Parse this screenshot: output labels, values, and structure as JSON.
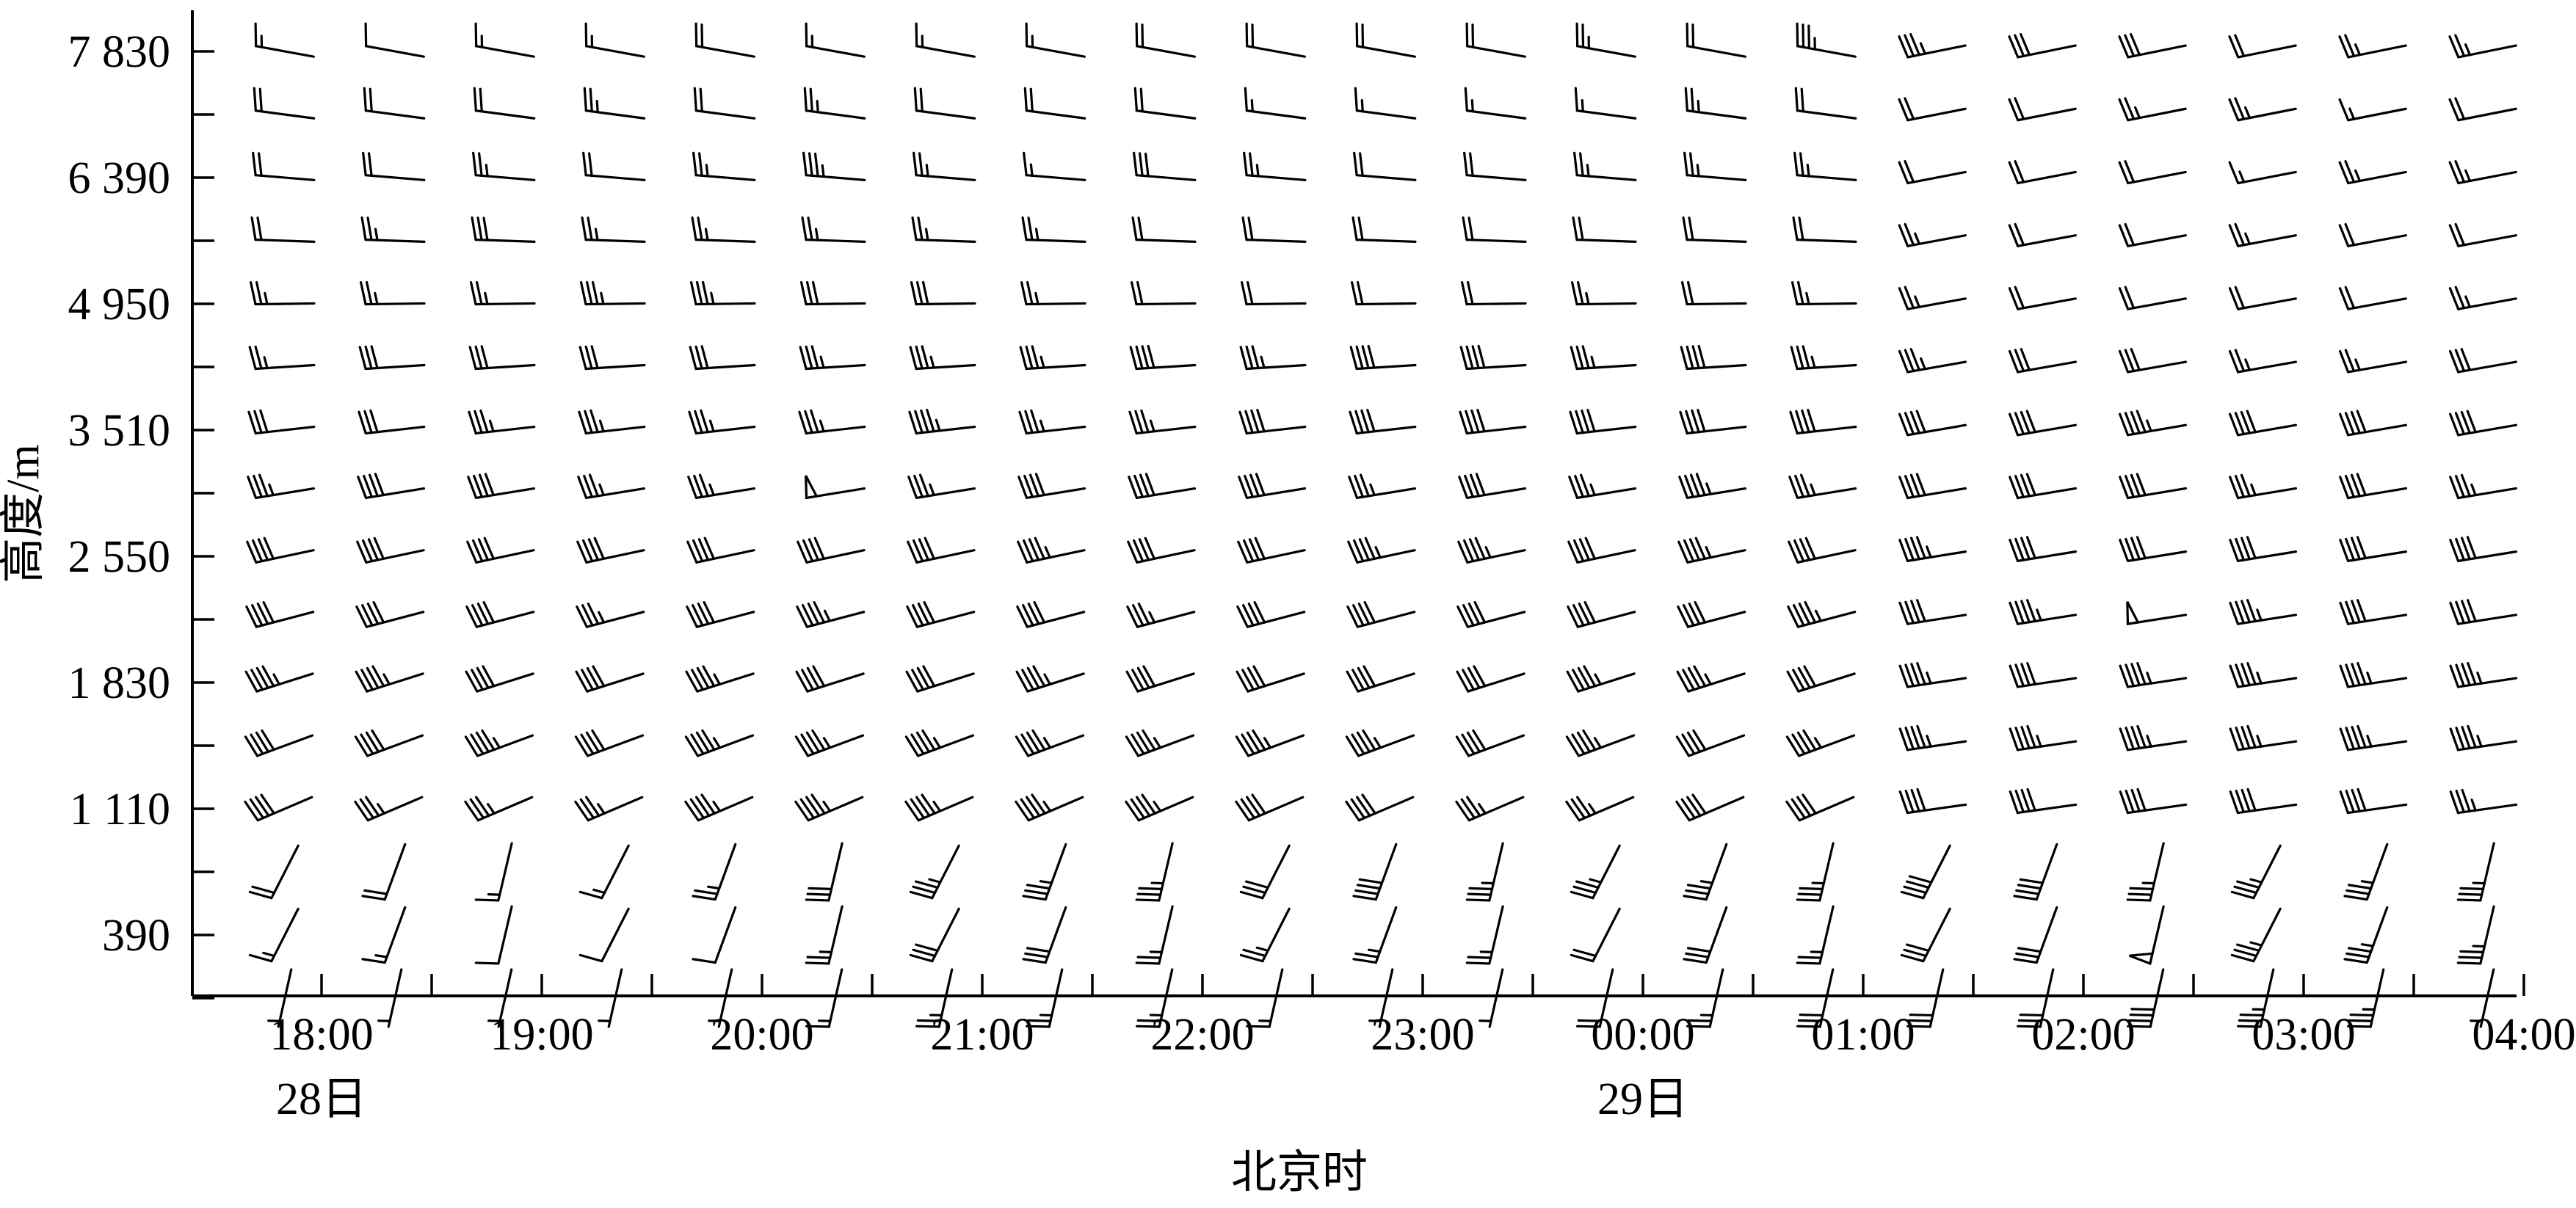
{
  "chart_data": {
    "type": "wind_barb",
    "xlabel": "北京时",
    "ylabel": "高度/m",
    "x_ticks": [
      "18:00",
      "19:00",
      "20:00",
      "21:00",
      "22:00",
      "23:00",
      "00:00",
      "01:00",
      "02:00",
      "03:00",
      "04:00"
    ],
    "date_labels": [
      {
        "text": "28日",
        "under_tick": "18:00"
      },
      {
        "text": "29日",
        "under_tick": "00:00"
      }
    ],
    "y_ticks": [
      "7 830",
      "6 390",
      "4 950",
      "3 510",
      "2 550",
      "1 830",
      "1 110",
      "390"
    ],
    "x_time_range": [
      "17:35",
      "04:00"
    ],
    "barb_times": [
      "17:50",
      "18:20",
      "18:50",
      "19:20",
      "19:50",
      "20:20",
      "20:50",
      "21:20",
      "21:50",
      "22:20",
      "22:50",
      "23:20",
      "23:50",
      "00:20",
      "00:50",
      "01:20",
      "01:50",
      "02:20",
      "02:50",
      "03:20",
      "03:50"
    ],
    "levels_note": "16 rows of barbs; labeled levels listed in y_ticks",
    "wind_speed_note": "speeds in m/s; barbs drawn with standard convention (short=2, full=4, flag=20)",
    "series": [
      {
        "name": "",
        "rows": [
          {
            "level_index": 0,
            "speeds": [
              6,
              5,
              6,
              6,
              8,
              6,
              6,
              6,
              8,
              8,
              8,
              8,
              10,
              8,
              14,
              14,
              12,
              12,
              8,
              10,
              10
            ]
          },
          {
            "level_index": 1,
            "speeds": [
              8,
              8,
              8,
              10,
              8,
              10,
              8,
              8,
              8,
              6,
              6,
              6,
              6,
              10,
              8,
              8,
              8,
              10,
              10,
              6,
              8
            ]
          },
          {
            "level_index": 2,
            "speeds": [
              8,
              8,
              10,
              8,
              10,
              14,
              10,
              6,
              12,
              10,
              8,
              8,
              10,
              10,
              10,
              8,
              8,
              8,
              6,
              10,
              10
            ]
          },
          {
            "level_index": 3,
            "speeds": [
              8,
              10,
              12,
              10,
              10,
              10,
              10,
              10,
              8,
              8,
              8,
              8,
              8,
              8,
              8,
              10,
              8,
              8,
              10,
              8,
              8
            ]
          },
          {
            "level_index": 4,
            "speeds": [
              10,
              10,
              10,
              14,
              14,
              12,
              12,
              10,
              8,
              8,
              8,
              8,
              10,
              8,
              10,
              10,
              8,
              8,
              8,
              8,
              10
            ]
          },
          {
            "level_index": 5,
            "speeds": [
              10,
              12,
              12,
              12,
              12,
              14,
              14,
              14,
              16,
              14,
              16,
              16,
              14,
              16,
              14,
              14,
              12,
              12,
              10,
              10,
              12
            ]
          },
          {
            "level_index": 6,
            "speeds": [
              12,
              12,
              14,
              14,
              14,
              14,
              18,
              14,
              14,
              16,
              16,
              16,
              16,
              16,
              16,
              16,
              16,
              18,
              16,
              16,
              16
            ]
          },
          {
            "level_index": 7,
            "speeds": [
              14,
              16,
              16,
              14,
              14,
              20,
              14,
              16,
              16,
              16,
              14,
              16,
              14,
              18,
              14,
              16,
              16,
              16,
              14,
              16,
              14
            ]
          },
          {
            "level_index": 8,
            "speeds": [
              16,
              16,
              16,
              16,
              16,
              16,
              16,
              18,
              16,
              16,
              18,
              18,
              16,
              18,
              16,
              18,
              16,
              16,
              16,
              16,
              16
            ]
          },
          {
            "level_index": 9,
            "speeds": [
              16,
              16,
              16,
              14,
              16,
              18,
              16,
              16,
              14,
              16,
              16,
              16,
              16,
              16,
              18,
              16,
              18,
              20,
              18,
              16,
              16
            ]
          },
          {
            "level_index": 10,
            "speeds": [
              18,
              18,
              16,
              16,
              18,
              16,
              16,
              18,
              16,
              16,
              16,
              16,
              18,
              18,
              16,
              18,
              16,
              18,
              18,
              18,
              18
            ]
          },
          {
            "level_index": 11,
            "speeds": [
              16,
              16,
              18,
              16,
              18,
              18,
              18,
              18,
              18,
              18,
              18,
              16,
              18,
              16,
              18,
              18,
              18,
              18,
              18,
              18,
              18
            ]
          },
          {
            "level_index": 12,
            "speeds": [
              16,
              14,
              14,
              14,
              18,
              18,
              18,
              18,
              18,
              16,
              16,
              14,
              14,
              16,
              16,
              16,
              16,
              16,
              16,
              16,
              14
            ]
          },
          {
            "level_index": 13,
            "speeds": [
              8,
              8,
              6,
              6,
              10,
              12,
              14,
              14,
              14,
              12,
              16,
              14,
              14,
              14,
              14,
              16,
              16,
              14,
              14,
              14,
              14
            ]
          },
          {
            "level_index": 14,
            "speeds": [
              6,
              6,
              4,
              4,
              4,
              10,
              12,
              12,
              10,
              10,
              10,
              10,
              8,
              12,
              10,
              12,
              12,
              20,
              14,
              14,
              14
            ]
          },
          {
            "level_index": 15,
            "speeds": [
              2,
              2,
              2,
              2,
              2,
              6,
              10,
              10,
              10,
              6,
              2,
              2,
              8,
              10,
              12,
              12,
              12,
              16,
              14,
              14,
              2
            ]
          }
        ]
      }
    ]
  }
}
